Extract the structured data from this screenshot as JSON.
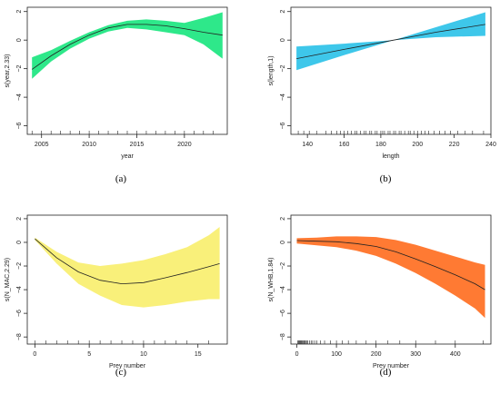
{
  "chart_data": [
    {
      "type": "line",
      "panel_label": "(a)",
      "xlabel": "year",
      "ylabel": "s(year,2.33)",
      "xlim": [
        2003.5,
        2024.5
      ],
      "ylim": [
        -6.6,
        2.3
      ],
      "xticks": [
        2005,
        2010,
        2015,
        2020
      ],
      "yticks": [
        -6,
        -4,
        -2,
        0,
        2
      ],
      "band_color": "#2ee88a",
      "series": [
        {
          "x": [
            2004,
            2006,
            2008,
            2010,
            2012,
            2014,
            2016,
            2018,
            2020,
            2022,
            2024
          ],
          "values": [
            -2.05,
            -1.1,
            -0.3,
            0.35,
            0.85,
            1.1,
            1.1,
            1.0,
            0.8,
            0.55,
            0.35
          ]
        }
      ],
      "band_upper": [
        -1.2,
        -0.7,
        -0.05,
        0.55,
        1.05,
        1.35,
        1.45,
        1.35,
        1.2,
        1.55,
        1.95
      ],
      "band_lower": [
        -2.7,
        -1.5,
        -0.6,
        0.1,
        0.6,
        0.85,
        0.75,
        0.55,
        0.35,
        -0.3,
        -1.3
      ],
      "rug": [
        2004,
        2005,
        2006,
        2007,
        2008,
        2009,
        2010,
        2011,
        2012,
        2013,
        2014,
        2015,
        2016,
        2017,
        2018,
        2019,
        2020,
        2021,
        2022,
        2023
      ]
    },
    {
      "type": "line",
      "panel_label": "(b)",
      "xlabel": "length",
      "ylabel": "s(length,1)",
      "xlim": [
        131,
        240
      ],
      "ylim": [
        -6.6,
        2.3
      ],
      "xticks": [
        140,
        160,
        180,
        200,
        220,
        240
      ],
      "yticks": [
        -6,
        -4,
        -2,
        0,
        2
      ],
      "band_color": "#3ec7ea",
      "series": [
        {
          "x": [
            134,
            160,
            187,
            210,
            237
          ],
          "values": [
            -1.3,
            -0.65,
            0.0,
            0.55,
            1.1
          ]
        }
      ],
      "band_upper": [
        -0.45,
        -0.25,
        0.0,
        0.9,
        1.95
      ],
      "band_lower": [
        -2.1,
        -1.05,
        0.0,
        0.2,
        0.3
      ],
      "rug": [
        135,
        138,
        141,
        145,
        150,
        153,
        156,
        158,
        160,
        162,
        164,
        166,
        167,
        169,
        171,
        172,
        174,
        175,
        177,
        178,
        180,
        181,
        182,
        184,
        185,
        187,
        188,
        190,
        191,
        193,
        195,
        196,
        198,
        200,
        202,
        204,
        206,
        209,
        212,
        215,
        218,
        222,
        226,
        230,
        236
      ]
    },
    {
      "type": "line",
      "panel_label": "(c)",
      "xlabel": "Prey number",
      "ylabel": "s(N_MAC,2.29)",
      "xlim": [
        -0.7,
        17.7
      ],
      "ylim": [
        -8.6,
        2.3
      ],
      "xticks": [
        0,
        5,
        10,
        15
      ],
      "yticks": [
        -8,
        -6,
        -4,
        -2,
        0,
        2
      ],
      "band_color": "#f9f07a",
      "series": [
        {
          "x": [
            0,
            2,
            4,
            6,
            8,
            10,
            12,
            14,
            16,
            17
          ],
          "values": [
            0.3,
            -1.3,
            -2.5,
            -3.2,
            -3.5,
            -3.4,
            -3.0,
            -2.55,
            -2.05,
            -1.8
          ]
        }
      ],
      "band_upper": [
        0.4,
        -0.8,
        -1.7,
        -2.0,
        -1.8,
        -1.5,
        -1.0,
        -0.4,
        0.6,
        1.3
      ],
      "band_lower": [
        0.2,
        -1.8,
        -3.5,
        -4.5,
        -5.3,
        -5.5,
        -5.3,
        -5.0,
        -4.8,
        -4.8
      ],
      "rug": [
        0,
        1,
        2,
        3,
        4,
        5,
        6,
        7,
        8,
        9,
        10,
        11,
        12,
        13,
        14,
        16
      ]
    },
    {
      "type": "line",
      "panel_label": "(d)",
      "xlabel": "Prey number",
      "ylabel": "s(N_WHB,1.84)",
      "xlim": [
        -15,
        490
      ],
      "ylim": [
        -8.6,
        2.3
      ],
      "xticks": [
        0,
        100,
        200,
        300,
        400
      ],
      "yticks": [
        -8,
        -6,
        -4,
        -2,
        0,
        2
      ],
      "band_color": "#ff7a33",
      "series": [
        {
          "x": [
            0,
            50,
            100,
            150,
            200,
            250,
            300,
            350,
            400,
            450,
            475
          ],
          "values": [
            0.15,
            0.1,
            0.05,
            -0.1,
            -0.35,
            -0.8,
            -1.4,
            -2.05,
            -2.75,
            -3.5,
            -4.0
          ]
        }
      ],
      "band_upper": [
        0.35,
        0.4,
        0.5,
        0.5,
        0.45,
        0.2,
        -0.2,
        -0.7,
        -1.2,
        -1.7,
        -1.9
      ],
      "band_lower": [
        -0.1,
        -0.25,
        -0.4,
        -0.7,
        -1.15,
        -1.8,
        -2.6,
        -3.5,
        -4.5,
        -5.6,
        -6.4
      ],
      "rug": [
        2,
        4,
        6,
        8,
        10,
        12,
        14,
        16,
        18,
        20,
        22,
        25,
        28,
        32,
        36,
        40,
        45,
        50,
        60,
        70,
        85,
        100,
        115,
        130,
        150,
        175,
        200,
        230,
        260,
        300,
        350,
        400,
        470
      ]
    }
  ]
}
